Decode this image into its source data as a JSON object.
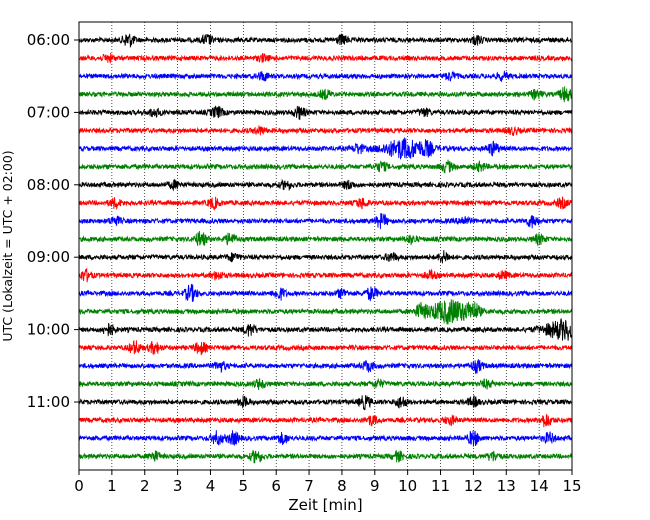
{
  "chart_data": {
    "type": "line",
    "xlabel": "Zeit  [min]",
    "ylabel": "UTC (Lokalzeit = UTC + 02:00)",
    "xlim": [
      0,
      15
    ],
    "x_ticks": [
      "0",
      "1",
      "2",
      "3",
      "4",
      "5",
      "6",
      "7",
      "8",
      "9",
      "10",
      "11",
      "12",
      "13",
      "14",
      "15"
    ],
    "y_tick_labels": [
      "06:00",
      "07:00",
      "08:00",
      "09:00",
      "10:00",
      "11:00"
    ],
    "trace_interval_minutes": 15,
    "start_time": "06:00",
    "grid": "vertical-dotted",
    "colors": [
      "#000000",
      "#ff0000",
      "#0000ff",
      "#008000"
    ],
    "traces": [
      {
        "time": "06:00",
        "color": "#000000",
        "events": [
          [
            1.5,
            1.5
          ],
          [
            3.9,
            1.1
          ],
          [
            8.0,
            1.0
          ],
          [
            12.1,
            0.9
          ]
        ]
      },
      {
        "time": "06:15",
        "color": "#ff0000",
        "events": [
          [
            0.9,
            0.8
          ],
          [
            5.6,
            0.7
          ]
        ]
      },
      {
        "time": "06:30",
        "color": "#0000ff",
        "events": [
          [
            5.6,
            0.9
          ],
          [
            11.3,
            0.8
          ],
          [
            12.9,
            0.8
          ]
        ]
      },
      {
        "time": "06:45",
        "color": "#008000",
        "events": [
          [
            7.5,
            0.9
          ],
          [
            13.9,
            0.9
          ],
          [
            14.8,
            1.6
          ]
        ]
      },
      {
        "time": "07:00",
        "color": "#000000",
        "events": [
          [
            2.3,
            0.9
          ],
          [
            4.2,
            1.2
          ],
          [
            6.7,
            1.3
          ],
          [
            10.5,
            0.8
          ]
        ]
      },
      {
        "time": "07:15",
        "color": "#ff0000",
        "events": [
          [
            5.5,
            0.8
          ],
          [
            13.2,
            0.7
          ]
        ]
      },
      {
        "time": "07:30",
        "color": "#0000ff",
        "events": [
          [
            8.5,
            1.0
          ],
          [
            9.9,
            2.2
          ],
          [
            10.6,
            1.1
          ],
          [
            12.6,
            1.4
          ]
        ]
      },
      {
        "time": "07:45",
        "color": "#008000",
        "events": [
          [
            9.2,
            1.0
          ],
          [
            11.2,
            1.2
          ],
          [
            12.2,
            0.9
          ]
        ]
      },
      {
        "time": "08:00",
        "color": "#000000",
        "events": [
          [
            2.9,
            0.8
          ],
          [
            6.3,
            0.9
          ],
          [
            8.2,
            0.8
          ]
        ]
      },
      {
        "time": "08:15",
        "color": "#ff0000",
        "events": [
          [
            1.1,
            1.0
          ],
          [
            4.1,
            1.1
          ],
          [
            8.6,
            1.0
          ],
          [
            14.7,
            1.0
          ]
        ]
      },
      {
        "time": "08:30",
        "color": "#0000ff",
        "events": [
          [
            1.1,
            0.9
          ],
          [
            9.2,
            1.5
          ],
          [
            11.7,
            0.9
          ],
          [
            13.8,
            1.3
          ]
        ]
      },
      {
        "time": "08:45",
        "color": "#008000",
        "events": [
          [
            3.7,
            1.6
          ],
          [
            4.6,
            1.2
          ],
          [
            10.1,
            0.8
          ],
          [
            14.0,
            1.0
          ]
        ]
      },
      {
        "time": "09:00",
        "color": "#000000",
        "events": [
          [
            4.7,
            0.8
          ],
          [
            9.5,
            0.9
          ],
          [
            11.1,
            1.2
          ]
        ]
      },
      {
        "time": "09:15",
        "color": "#ff0000",
        "events": [
          [
            0.2,
            1.2
          ],
          [
            4.2,
            0.8
          ],
          [
            10.7,
            0.8
          ],
          [
            12.9,
            0.8
          ]
        ]
      },
      {
        "time": "09:30",
        "color": "#0000ff",
        "events": [
          [
            3.4,
            1.8
          ],
          [
            6.1,
            1.3
          ],
          [
            8.0,
            0.9
          ],
          [
            8.9,
            1.4
          ]
        ]
      },
      {
        "time": "09:45",
        "color": "#008000",
        "events": [
          [
            10.4,
            1.4
          ],
          [
            11.3,
            2.6
          ],
          [
            12.0,
            1.5
          ]
        ]
      },
      {
        "time": "10:00",
        "color": "#000000",
        "events": [
          [
            0.9,
            1.3
          ],
          [
            5.2,
            1.3
          ],
          [
            14.8,
            2.2
          ]
        ]
      },
      {
        "time": "10:15",
        "color": "#ff0000",
        "events": [
          [
            1.7,
            1.4
          ],
          [
            2.3,
            1.3
          ],
          [
            3.7,
            1.3
          ]
        ]
      },
      {
        "time": "10:30",
        "color": "#0000ff",
        "events": [
          [
            4.3,
            1.0
          ],
          [
            8.8,
            1.1
          ],
          [
            12.1,
            1.3
          ]
        ]
      },
      {
        "time": "10:45",
        "color": "#008000",
        "events": [
          [
            5.5,
            1.0
          ],
          [
            9.1,
            0.8
          ],
          [
            12.4,
            0.8
          ]
        ]
      },
      {
        "time": "11:00",
        "color": "#000000",
        "events": [
          [
            5.0,
            1.0
          ],
          [
            8.7,
            1.4
          ],
          [
            9.8,
            1.2
          ],
          [
            12.0,
            1.0
          ]
        ]
      },
      {
        "time": "11:15",
        "color": "#ff0000",
        "events": [
          [
            8.9,
            1.0
          ],
          [
            11.3,
            0.9
          ],
          [
            14.2,
            1.4
          ]
        ]
      },
      {
        "time": "11:30",
        "color": "#0000ff",
        "events": [
          [
            4.2,
            1.4
          ],
          [
            4.7,
            1.4
          ],
          [
            6.2,
            1.1
          ],
          [
            12.0,
            1.6
          ],
          [
            14.3,
            1.1
          ]
        ]
      },
      {
        "time": "11:45",
        "color": "#008000",
        "events": [
          [
            2.3,
            1.0
          ],
          [
            5.4,
            1.4
          ],
          [
            9.7,
            1.0
          ],
          [
            12.6,
            1.0
          ]
        ]
      }
    ]
  }
}
